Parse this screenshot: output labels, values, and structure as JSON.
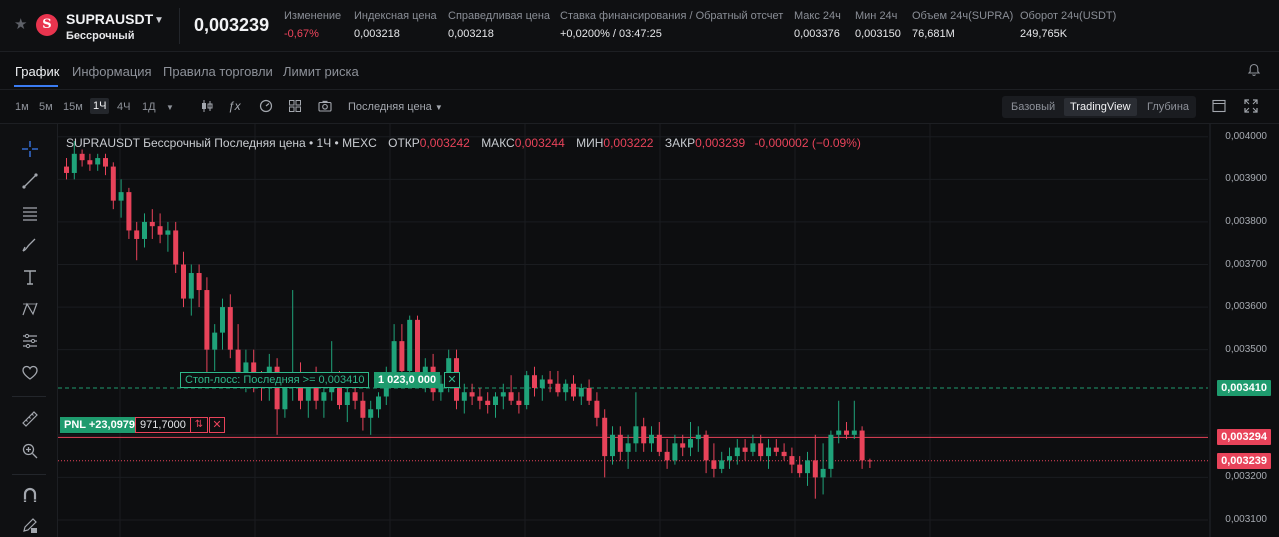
{
  "header": {
    "symbol": "SUPRAUSDT",
    "contract_type": "Бессрочный",
    "last_price": "0,003239",
    "stats": [
      {
        "label": "Изменение",
        "value": "-0,67%",
        "negative": true
      },
      {
        "label": "Индексная цена",
        "value": "0,003218"
      },
      {
        "label": "Справедливая цена",
        "value": "0,003218"
      },
      {
        "label": "Ставка финансирования / Обратный отсчет",
        "value": "+0,0200% / 03:47:25"
      },
      {
        "label": "Макс 24ч",
        "value": "0,003376"
      },
      {
        "label": "Мин 24ч",
        "value": "0,003150"
      },
      {
        "label": "Объем 24ч(SUPRA)",
        "value": "76,681M"
      },
      {
        "label": "Оборот 24ч(USDT)",
        "value": "249,765K"
      }
    ]
  },
  "tabs": [
    "График",
    "Информация",
    "Правила торговли",
    "Лимит риска"
  ],
  "toolbar": {
    "timeframes": [
      "1м",
      "5м",
      "15м",
      "1Ч",
      "4Ч",
      "1Д"
    ],
    "active_timeframe": "1Ч",
    "price_type": "Последняя цена",
    "views": [
      "Базовый",
      "TradingView",
      "Глубина"
    ],
    "active_view": "TradingView"
  },
  "legend": {
    "title": "SUPRAUSDT Бессрочный Последняя цена • 1Ч • MEXC",
    "open_label": "ОТКР",
    "open": "0,003242",
    "high_label": "МАКС",
    "high": "0,003244",
    "low_label": "МИН",
    "low": "0,003222",
    "close_label": "ЗАКР",
    "close": "0,003239",
    "change": "-0,000002 (−0.09%)"
  },
  "positions": {
    "stop_loss_label": "Стоп-лосс: Последняя >= 0,003410",
    "stop_loss_qty": "1 023,0 000",
    "pnl_label": "PNL +23,0979",
    "pnl_qty": "971,7000",
    "reverse_icon": "⇅",
    "close_icon": "✕"
  },
  "price_tags": {
    "stop_loss": "0,003410",
    "entry": "0,003294",
    "last": "0,003239"
  },
  "colors": {
    "up": "#1fa37a",
    "down": "#e8435a",
    "accent": "#3b7cf2"
  },
  "chart_data": {
    "type": "candlestick",
    "y_ticks": [
      "0,004000",
      "0,003900",
      "0,003800",
      "0,003700",
      "0,003600",
      "0,003500",
      "0,003300",
      "0,003200",
      "0,003100"
    ],
    "ylim": [
      0.00306,
      0.00403
    ],
    "lines": {
      "stop_loss": 0.00341,
      "entry": 0.003294,
      "last": 0.003239
    },
    "candles": [
      [
        0.00393,
        0.00395,
        0.0039,
        0.003915
      ],
      [
        0.003915,
        0.00399,
        0.0039,
        0.00396
      ],
      [
        0.00396,
        0.00397,
        0.00393,
        0.003945
      ],
      [
        0.003945,
        0.00396,
        0.00392,
        0.003935
      ],
      [
        0.003935,
        0.00396,
        0.00392,
        0.00395
      ],
      [
        0.00395,
        0.00396,
        0.00391,
        0.00393
      ],
      [
        0.00393,
        0.00394,
        0.00383,
        0.00385
      ],
      [
        0.00385,
        0.0039,
        0.00381,
        0.00387
      ],
      [
        0.00387,
        0.00388,
        0.00376,
        0.00378
      ],
      [
        0.00378,
        0.0038,
        0.00371,
        0.00376
      ],
      [
        0.00376,
        0.00382,
        0.00374,
        0.0038
      ],
      [
        0.0038,
        0.00383,
        0.00376,
        0.00379
      ],
      [
        0.00379,
        0.00382,
        0.00375,
        0.00377
      ],
      [
        0.00377,
        0.0038,
        0.00373,
        0.00378
      ],
      [
        0.00378,
        0.0038,
        0.00368,
        0.0037
      ],
      [
        0.0037,
        0.00373,
        0.0036,
        0.00362
      ],
      [
        0.00362,
        0.0037,
        0.00358,
        0.00368
      ],
      [
        0.00368,
        0.0037,
        0.0036,
        0.00364
      ],
      [
        0.00364,
        0.00367,
        0.00344,
        0.0035
      ],
      [
        0.0035,
        0.00356,
        0.00345,
        0.00354
      ],
      [
        0.00354,
        0.00362,
        0.0035,
        0.0036
      ],
      [
        0.0036,
        0.00363,
        0.00348,
        0.0035
      ],
      [
        0.0035,
        0.00356,
        0.00342,
        0.00344
      ],
      [
        0.00344,
        0.0035,
        0.0034,
        0.00347
      ],
      [
        0.00347,
        0.0035,
        0.0034,
        0.00342
      ],
      [
        0.00342,
        0.00345,
        0.00338,
        0.00341
      ],
      [
        0.00341,
        0.00349,
        0.00338,
        0.00346
      ],
      [
        0.00346,
        0.00348,
        0.0033,
        0.00336
      ],
      [
        0.00336,
        0.00343,
        0.00334,
        0.00342
      ],
      [
        0.00342,
        0.00364,
        0.00338,
        0.00344
      ],
      [
        0.00344,
        0.00347,
        0.00336,
        0.00338
      ],
      [
        0.00338,
        0.00343,
        0.00334,
        0.00341
      ],
      [
        0.00341,
        0.00346,
        0.00336,
        0.00338
      ],
      [
        0.00338,
        0.00342,
        0.00334,
        0.0034
      ],
      [
        0.0034,
        0.00352,
        0.00338,
        0.00341
      ],
      [
        0.00341,
        0.00345,
        0.00336,
        0.00337
      ],
      [
        0.00337,
        0.00342,
        0.00333,
        0.0034
      ],
      [
        0.0034,
        0.00344,
        0.00336,
        0.00338
      ],
      [
        0.00338,
        0.0034,
        0.00331,
        0.00334
      ],
      [
        0.00334,
        0.00338,
        0.0033,
        0.00336
      ],
      [
        0.00336,
        0.0034,
        0.00334,
        0.00339
      ],
      [
        0.00339,
        0.00346,
        0.00337,
        0.00344
      ],
      [
        0.00344,
        0.00356,
        0.00342,
        0.00352
      ],
      [
        0.00352,
        0.00356,
        0.00343,
        0.00345
      ],
      [
        0.00345,
        0.00358,
        0.00343,
        0.00357
      ],
      [
        0.00357,
        0.00358,
        0.00342,
        0.00344
      ],
      [
        0.00344,
        0.00348,
        0.0034,
        0.00346
      ],
      [
        0.00346,
        0.00349,
        0.00338,
        0.0034
      ],
      [
        0.0034,
        0.00344,
        0.00338,
        0.00342
      ],
      [
        0.00342,
        0.0035,
        0.0034,
        0.00348
      ],
      [
        0.00348,
        0.0035,
        0.00336,
        0.00338
      ],
      [
        0.00338,
        0.00342,
        0.00335,
        0.0034
      ],
      [
        0.0034,
        0.00342,
        0.00337,
        0.00339
      ],
      [
        0.00339,
        0.00341,
        0.00336,
        0.00338
      ],
      [
        0.00338,
        0.0034,
        0.00335,
        0.00337
      ],
      [
        0.00337,
        0.0034,
        0.00334,
        0.00339
      ],
      [
        0.00339,
        0.00342,
        0.00336,
        0.0034
      ],
      [
        0.0034,
        0.00344,
        0.00337,
        0.00338
      ],
      [
        0.00338,
        0.0034,
        0.00335,
        0.00337
      ],
      [
        0.00337,
        0.00345,
        0.00336,
        0.00344
      ],
      [
        0.00344,
        0.00346,
        0.00339,
        0.00341
      ],
      [
        0.00341,
        0.00344,
        0.00338,
        0.00343
      ],
      [
        0.00343,
        0.00345,
        0.0034,
        0.00342
      ],
      [
        0.00342,
        0.00345,
        0.00339,
        0.0034
      ],
      [
        0.0034,
        0.00343,
        0.00338,
        0.00342
      ],
      [
        0.00342,
        0.00344,
        0.00338,
        0.00339
      ],
      [
        0.00339,
        0.00342,
        0.00337,
        0.00341
      ],
      [
        0.00341,
        0.00343,
        0.00337,
        0.00338
      ],
      [
        0.00338,
        0.0034,
        0.00332,
        0.00334
      ],
      [
        0.00334,
        0.00336,
        0.0032,
        0.00325
      ],
      [
        0.00325,
        0.00332,
        0.00323,
        0.0033
      ],
      [
        0.0033,
        0.00332,
        0.00324,
        0.00326
      ],
      [
        0.00326,
        0.0033,
        0.00322,
        0.00328
      ],
      [
        0.00328,
        0.0034,
        0.00326,
        0.00332
      ],
      [
        0.00332,
        0.00334,
        0.00326,
        0.00328
      ],
      [
        0.00328,
        0.00332,
        0.00326,
        0.0033
      ],
      [
        0.0033,
        0.00333,
        0.00325,
        0.00326
      ],
      [
        0.00326,
        0.00329,
        0.00322,
        0.00324
      ],
      [
        0.00324,
        0.0033,
        0.00323,
        0.00328
      ],
      [
        0.00328,
        0.0033,
        0.00325,
        0.00327
      ],
      [
        0.00327,
        0.00333,
        0.00325,
        0.00329
      ],
      [
        0.00329,
        0.00332,
        0.00326,
        0.0033
      ],
      [
        0.0033,
        0.00331,
        0.00321,
        0.00324
      ],
      [
        0.00324,
        0.00328,
        0.0032,
        0.00322
      ],
      [
        0.00322,
        0.00326,
        0.00321,
        0.00324
      ],
      [
        0.00324,
        0.00327,
        0.00322,
        0.00325
      ],
      [
        0.00325,
        0.00329,
        0.00323,
        0.00327
      ],
      [
        0.00327,
        0.00329,
        0.00324,
        0.00326
      ],
      [
        0.00326,
        0.0033,
        0.00325,
        0.00328
      ],
      [
        0.00328,
        0.0033,
        0.00324,
        0.00325
      ],
      [
        0.00325,
        0.00329,
        0.00322,
        0.00327
      ],
      [
        0.00327,
        0.00329,
        0.00325,
        0.00326
      ],
      [
        0.00326,
        0.00328,
        0.00324,
        0.00325
      ],
      [
        0.00325,
        0.00327,
        0.00321,
        0.00323
      ],
      [
        0.00323,
        0.00325,
        0.0032,
        0.00321
      ],
      [
        0.00321,
        0.00326,
        0.00318,
        0.00324
      ],
      [
        0.00324,
        0.0033,
        0.00315,
        0.0032
      ],
      [
        0.0032,
        0.00328,
        0.00316,
        0.00322
      ],
      [
        0.00322,
        0.00331,
        0.0032,
        0.0033
      ],
      [
        0.0033,
        0.00338,
        0.00328,
        0.00331
      ],
      [
        0.00331,
        0.00333,
        0.00329,
        0.0033
      ],
      [
        0.0033,
        0.00338,
        0.00329,
        0.00331
      ],
      [
        0.00331,
        0.00332,
        0.00322,
        0.00324
      ],
      [
        0.00324,
        0.003244,
        0.003222,
        0.003239
      ]
    ]
  }
}
